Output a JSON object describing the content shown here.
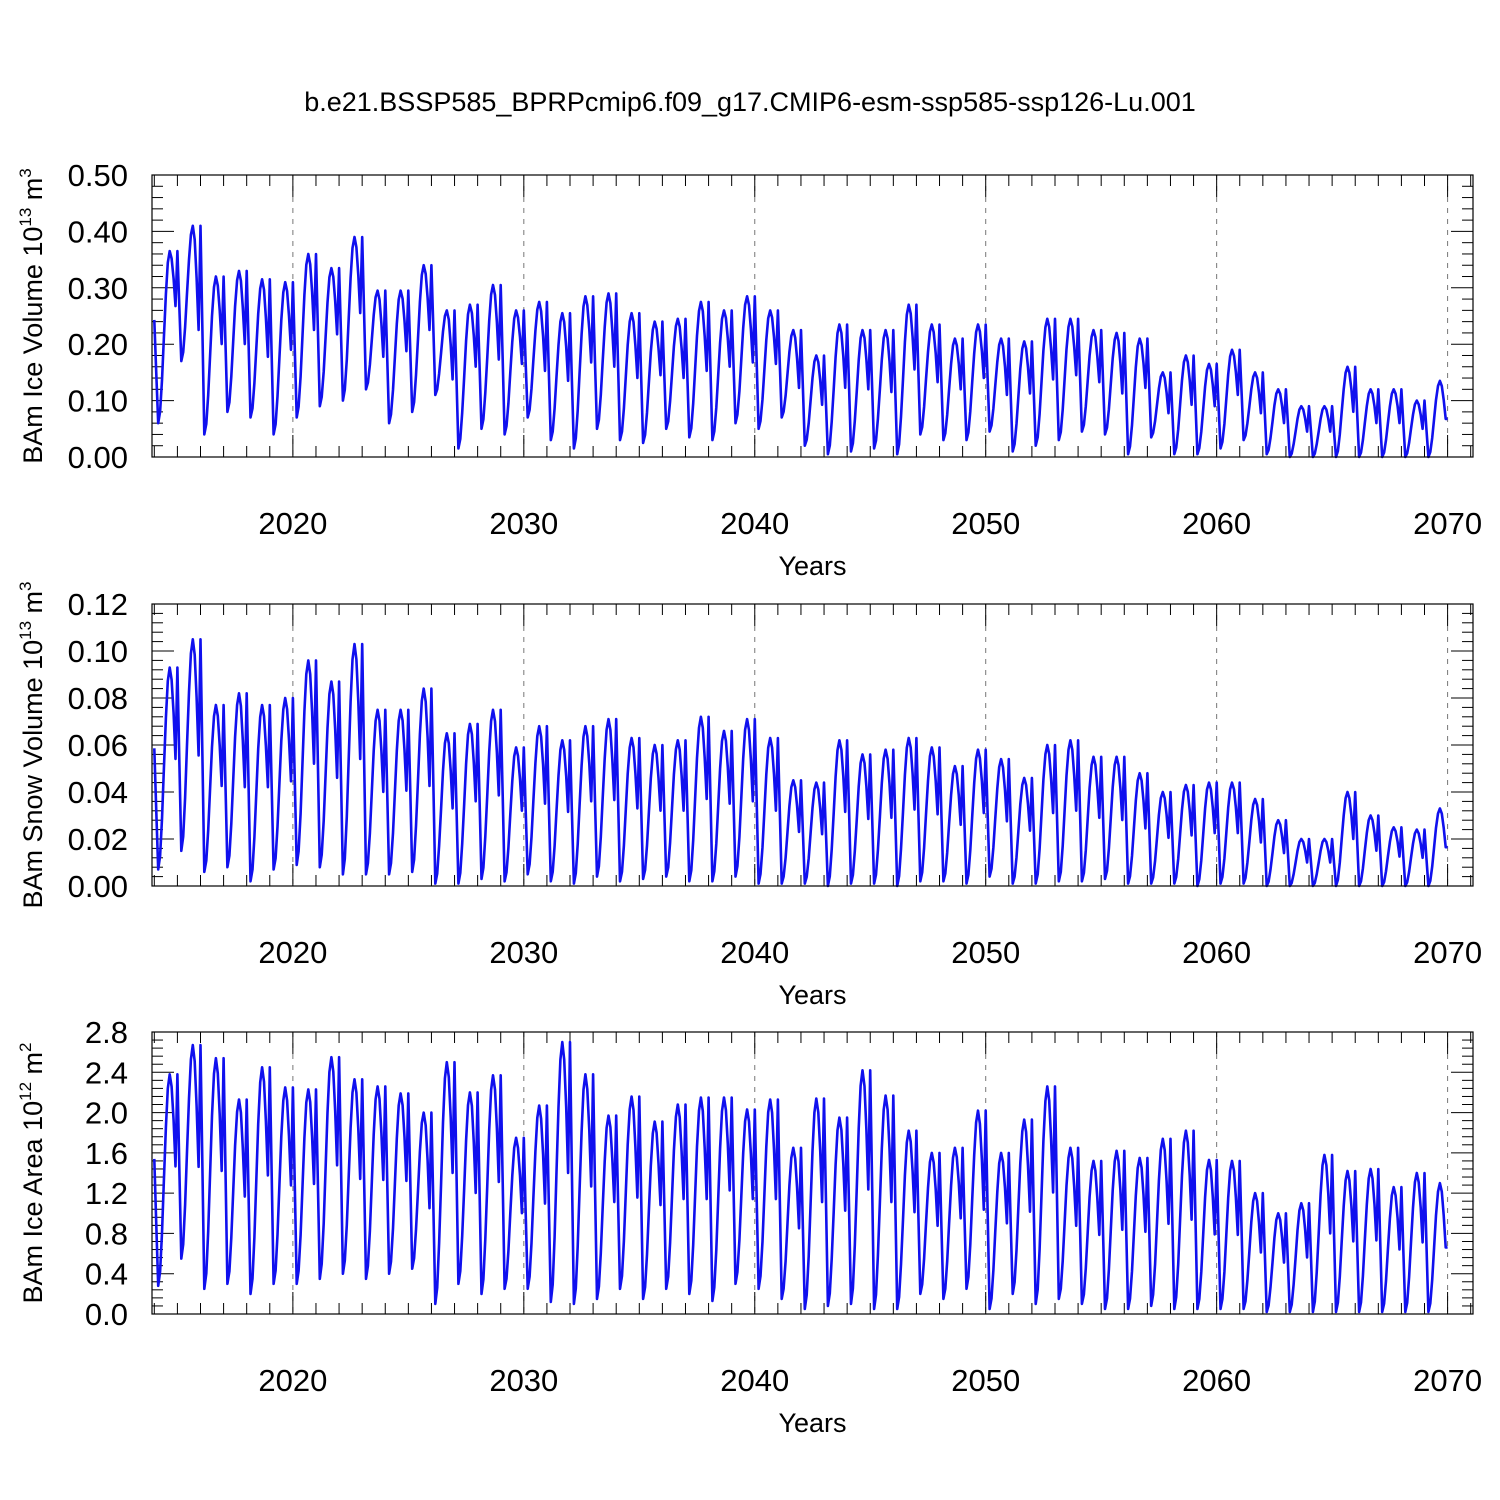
{
  "figure": {
    "title": "b.e21.BSSP585_BPRPcmip6.f09_g17.CMIP6-esm-ssp585-ssp126-Lu.001",
    "line_color": "#1010ee"
  },
  "chart_data": [
    {
      "type": "line",
      "id": "ice-volume",
      "ylabel_main": "BAm Ice Volume 10",
      "ylabel_exp": "13",
      "ylabel_unit": " m",
      "ylabel_unit_exp": "3",
      "xlabel": "Years",
      "xlim": [
        2013.9,
        2071.1
      ],
      "ylim": [
        0,
        0.5
      ],
      "yticks": [
        "0.00",
        "0.10",
        "0.20",
        "0.30",
        "0.40",
        "0.50"
      ],
      "yticks_values": [
        0,
        0.1,
        0.2,
        0.3,
        0.4,
        0.5
      ],
      "xticks": [
        "2020",
        "2030",
        "2040",
        "2050",
        "2060",
        "2070"
      ],
      "xticks_values": [
        2020,
        2030,
        2040,
        2050,
        2060,
        2070
      ],
      "grid_x": true,
      "start_year": 2014,
      "annual_minima": [
        0.06,
        0.17,
        0.04,
        0.08,
        0.07,
        0.04,
        0.07,
        0.09,
        0.1,
        0.12,
        0.06,
        0.08,
        0.11,
        0.015,
        0.05,
        0.04,
        0.07,
        0.03,
        0.015,
        0.05,
        0.03,
        0.025,
        0.05,
        0.035,
        0.03,
        0.06,
        0.05,
        0.07,
        0.02,
        0.005,
        0.01,
        0.015,
        0.005,
        0.04,
        0.03,
        0.03,
        0.045,
        0.01,
        0.02,
        0.03,
        0.045,
        0.04,
        0.005,
        0.035,
        0.005,
        0.005,
        0.015,
        0.03,
        0.005,
        0.0,
        0.0,
        0.0,
        0.0,
        0.0,
        0.0,
        0.0
      ],
      "annual_maxima": [
        0.365,
        0.41,
        0.32,
        0.33,
        0.315,
        0.31,
        0.36,
        0.335,
        0.39,
        0.295,
        0.295,
        0.34,
        0.26,
        0.27,
        0.305,
        0.26,
        0.275,
        0.255,
        0.285,
        0.29,
        0.255,
        0.24,
        0.245,
        0.275,
        0.26,
        0.285,
        0.26,
        0.225,
        0.18,
        0.235,
        0.225,
        0.225,
        0.27,
        0.235,
        0.21,
        0.235,
        0.21,
        0.205,
        0.245,
        0.245,
        0.225,
        0.22,
        0.21,
        0.15,
        0.18,
        0.165,
        0.19,
        0.15,
        0.12,
        0.09,
        0.09,
        0.16,
        0.12,
        0.12,
        0.1,
        0.135
      ]
    },
    {
      "type": "line",
      "id": "snow-volume",
      "ylabel_main": "BAm Snow Volume 10",
      "ylabel_exp": "13",
      "ylabel_unit": " m",
      "ylabel_unit_exp": "3",
      "xlabel": "Years",
      "xlim": [
        2013.9,
        2071.1
      ],
      "ylim": [
        0,
        0.12
      ],
      "yticks": [
        "0.00",
        "0.02",
        "0.04",
        "0.06",
        "0.08",
        "0.10",
        "0.12"
      ],
      "yticks_values": [
        0,
        0.02,
        0.04,
        0.06,
        0.08,
        0.1,
        0.12
      ],
      "xticks": [
        "2020",
        "2030",
        "2040",
        "2050",
        "2060",
        "2070"
      ],
      "xticks_values": [
        2020,
        2030,
        2040,
        2050,
        2060,
        2070
      ],
      "grid_x": true,
      "start_year": 2014,
      "annual_minima": [
        0.007,
        0.015,
        0.006,
        0.008,
        0.002,
        0.007,
        0.009,
        0.008,
        0.005,
        0.005,
        0.005,
        0.006,
        0.001,
        0.001,
        0.003,
        0.002,
        0.005,
        0.002,
        0.001,
        0.004,
        0.002,
        0.003,
        0.004,
        0.002,
        0.002,
        0.004,
        0.001,
        0.001,
        0.001,
        0.0,
        0.001,
        0.001,
        0.0,
        0.002,
        0.002,
        0.001,
        0.004,
        0.001,
        0.001,
        0.002,
        0.002,
        0.003,
        0.001,
        0.001,
        0.001,
        0.0,
        0.001,
        0.001,
        0.0,
        0.0,
        0.0,
        0.0,
        0.0,
        0.0,
        0.0,
        0.0
      ],
      "annual_maxima": [
        0.093,
        0.105,
        0.077,
        0.082,
        0.077,
        0.08,
        0.096,
        0.087,
        0.103,
        0.075,
        0.075,
        0.084,
        0.065,
        0.069,
        0.075,
        0.059,
        0.068,
        0.062,
        0.068,
        0.071,
        0.063,
        0.06,
        0.062,
        0.072,
        0.066,
        0.071,
        0.063,
        0.045,
        0.044,
        0.062,
        0.056,
        0.058,
        0.063,
        0.059,
        0.051,
        0.058,
        0.054,
        0.046,
        0.06,
        0.062,
        0.055,
        0.055,
        0.048,
        0.04,
        0.043,
        0.044,
        0.044,
        0.037,
        0.028,
        0.02,
        0.02,
        0.04,
        0.03,
        0.025,
        0.024,
        0.033
      ]
    },
    {
      "type": "line",
      "id": "ice-area",
      "ylabel_main": "BAm Ice Area 10",
      "ylabel_exp": "12",
      "ylabel_unit": " m",
      "ylabel_unit_exp": "2",
      "xlabel": "Years",
      "xlim": [
        2013.9,
        2071.1
      ],
      "ylim": [
        0,
        2.8
      ],
      "yticks": [
        "0.0",
        "0.4",
        "0.8",
        "1.2",
        "1.6",
        "2.0",
        "2.4",
        "2.8"
      ],
      "yticks_values": [
        0,
        0.4,
        0.8,
        1.2,
        1.6,
        2.0,
        2.4,
        2.8
      ],
      "xticks": [
        "2020",
        "2030",
        "2040",
        "2050",
        "2060",
        "2070"
      ],
      "xticks_values": [
        2020,
        2030,
        2040,
        2050,
        2060,
        2070
      ],
      "grid_x": true,
      "start_year": 2014,
      "annual_minima": [
        0.28,
        0.55,
        0.25,
        0.3,
        0.2,
        0.3,
        0.3,
        0.35,
        0.4,
        0.35,
        0.4,
        0.45,
        0.1,
        0.3,
        0.2,
        0.25,
        0.25,
        0.12,
        0.1,
        0.15,
        0.25,
        0.15,
        0.25,
        0.2,
        0.13,
        0.3,
        0.25,
        0.15,
        0.05,
        0.08,
        0.1,
        0.05,
        0.05,
        0.2,
        0.15,
        0.25,
        0.05,
        0.2,
        0.1,
        0.15,
        0.1,
        0.05,
        0.05,
        0.08,
        0.05,
        0.05,
        0.05,
        0.05,
        0.02,
        0.02,
        0.02,
        0.02,
        0.02,
        0.02,
        0.02,
        0.02
      ],
      "annual_maxima": [
        2.38,
        2.67,
        2.54,
        2.13,
        2.45,
        2.25,
        2.23,
        2.55,
        2.33,
        2.26,
        2.19,
        2.0,
        2.5,
        2.2,
        2.37,
        1.75,
        2.07,
        2.7,
        2.38,
        1.97,
        2.16,
        1.91,
        2.08,
        2.15,
        2.15,
        2.03,
        2.13,
        1.65,
        2.14,
        1.95,
        2.42,
        2.17,
        1.82,
        1.6,
        1.65,
        2.02,
        1.6,
        1.93,
        2.26,
        1.65,
        1.52,
        1.62,
        1.55,
        1.74,
        1.82,
        1.53,
        1.52,
        1.2,
        1.0,
        1.1,
        1.58,
        1.42,
        1.44,
        1.26,
        1.4,
        1.3
      ]
    }
  ]
}
